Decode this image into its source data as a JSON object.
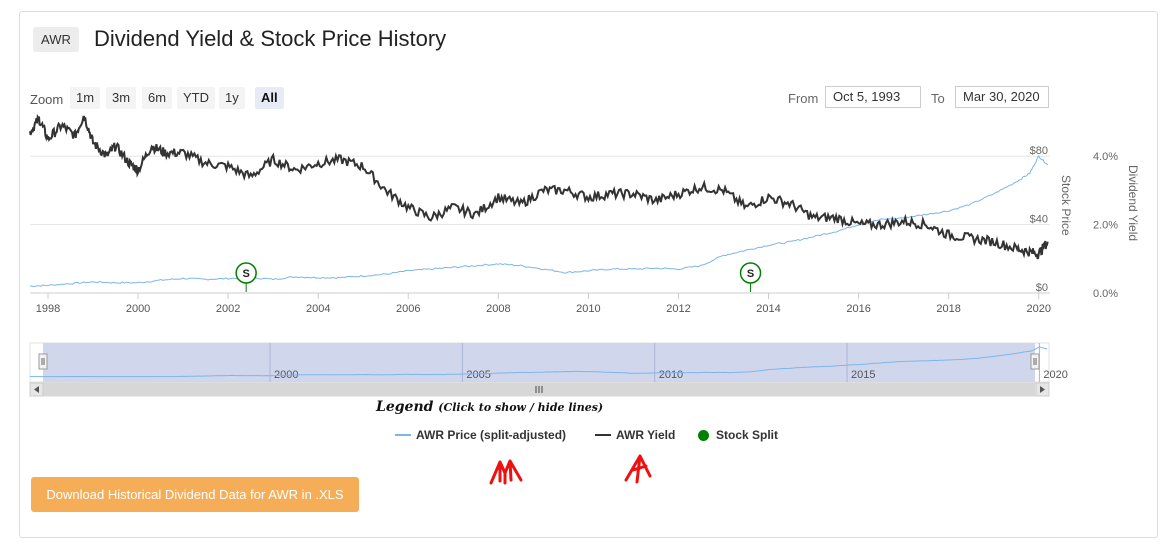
{
  "ticker": "AWR",
  "title": "Dividend Yield & Stock Price History",
  "zoom": {
    "label": "Zoom",
    "buttons": [
      "1m",
      "3m",
      "6m",
      "YTD",
      "1y",
      "All"
    ],
    "active": "All"
  },
  "range": {
    "from_label": "From",
    "from_value": "Oct 5, 1993",
    "to_label": "To",
    "to_value": "Mar 30, 2020"
  },
  "chart_data": {
    "type": "line",
    "x_ticks": [
      "1998",
      "2000",
      "2002",
      "2004",
      "2006",
      "2008",
      "2010",
      "2012",
      "2014",
      "2016",
      "2018",
      "2020"
    ],
    "y_price_ticks": [
      "$0",
      "$40",
      "$80"
    ],
    "y_yield_ticks": [
      "0.0%",
      "2.0%",
      "4.0%"
    ],
    "ylabel_price": "Stock Price",
    "ylabel_yield": "Dividend Yield",
    "price_range": [
      0,
      100
    ],
    "yield_range": [
      0,
      5
    ],
    "series": [
      {
        "name": "AWR Price (split-adjusted)",
        "axis": "price",
        "color": "#7cb5ec",
        "x": [
          1997.6,
          1998.0,
          1998.5,
          1999.0,
          1999.5,
          2000.0,
          2000.5,
          2001.0,
          2001.5,
          2002.0,
          2002.5,
          2003.0,
          2003.5,
          2004.0,
          2004.5,
          2005.0,
          2005.5,
          2006.0,
          2006.5,
          2007.0,
          2007.5,
          2008.0,
          2008.5,
          2009.0,
          2009.5,
          2010.0,
          2010.5,
          2011.0,
          2011.5,
          2012.0,
          2012.5,
          2013.0,
          2013.5,
          2014.0,
          2014.5,
          2015.0,
          2015.5,
          2016.0,
          2016.5,
          2017.0,
          2017.5,
          2018.0,
          2018.5,
          2019.0,
          2019.5,
          2019.8,
          2020.0,
          2020.2
        ],
        "values": [
          4,
          4.5,
          5.5,
          6.5,
          6,
          6,
          7.5,
          8.5,
          8,
          8.5,
          9,
          8,
          9.5,
          9,
          9,
          10,
          11,
          13,
          14,
          15,
          16,
          17,
          16,
          14,
          12,
          13,
          14,
          14,
          14.5,
          14,
          16,
          22,
          25,
          28,
          30,
          33,
          36,
          40,
          43,
          44,
          46,
          48,
          52,
          58,
          65,
          70,
          80,
          75
        ]
      },
      {
        "name": "AWR Yield",
        "axis": "yield",
        "color": "#333333",
        "x": [
          1997.6,
          1997.8,
          1998.0,
          1998.3,
          1998.6,
          1998.8,
          1999.0,
          1999.3,
          1999.5,
          1999.8,
          2000.0,
          2000.3,
          2000.6,
          2001.0,
          2001.5,
          2002.0,
          2002.5,
          2003.0,
          2003.5,
          2004.0,
          2004.5,
          2005.0,
          2005.5,
          2006.0,
          2006.5,
          2007.0,
          2007.5,
          2008.0,
          2008.5,
          2009.0,
          2009.5,
          2010.0,
          2010.5,
          2011.0,
          2011.5,
          2012.0,
          2012.5,
          2013.0,
          2013.5,
          2014.0,
          2014.5,
          2015.0,
          2015.5,
          2016.0,
          2016.5,
          2017.0,
          2017.5,
          2018.0,
          2018.5,
          2019.0,
          2019.5,
          2019.8,
          2020.0,
          2020.2
        ],
        "values": [
          4.7,
          5.1,
          4.5,
          4.9,
          4.6,
          5.2,
          4.4,
          4.0,
          4.3,
          3.8,
          3.6,
          4.3,
          4.1,
          4.1,
          3.8,
          3.7,
          3.4,
          3.9,
          3.6,
          3.8,
          3.9,
          3.7,
          3.0,
          2.5,
          2.2,
          2.5,
          2.3,
          2.8,
          2.6,
          3.0,
          3.0,
          2.8,
          2.9,
          2.9,
          2.7,
          2.9,
          3.1,
          3.0,
          2.5,
          2.8,
          2.6,
          2.2,
          2.2,
          2.0,
          2.0,
          2.1,
          2.0,
          1.7,
          1.6,
          1.5,
          1.3,
          1.2,
          1.15,
          1.5
        ]
      }
    ],
    "flags": [
      {
        "x": 2002.4,
        "label": "S"
      },
      {
        "x": 2013.6,
        "label": "S"
      }
    ],
    "navigator_ticks": [
      "2000",
      "2005",
      "2010",
      "2015",
      "2020"
    ]
  },
  "legend": {
    "title": "Legend",
    "subtitle": "(Click to show / hide lines)",
    "items": [
      {
        "label": "AWR Price (split-adjusted)",
        "color": "#7cb5ec"
      },
      {
        "label": "AWR Yield",
        "color": "#333333"
      },
      {
        "label": "Stock Split",
        "color": "#008000"
      }
    ]
  },
  "download_button": "Download Historical Dividend Data for AWR in .XLS",
  "annotation_color": "#ee1111"
}
